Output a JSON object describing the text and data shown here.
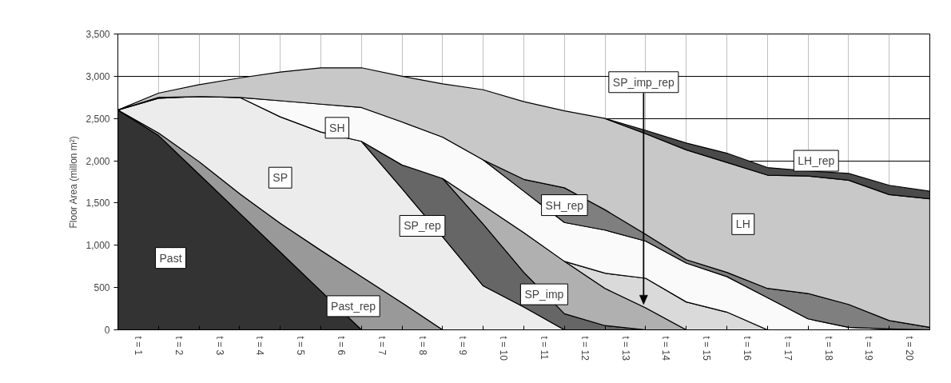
{
  "chart_data": {
    "type": "area",
    "stacked": true,
    "ylabel": "Floor Area (millon m²)",
    "x": [
      0.5,
      1.5,
      2.5,
      3.5,
      4.5,
      5.5,
      6.5,
      7.5,
      8.5,
      9.5,
      10.5,
      11.5,
      12.5,
      13.5,
      14.5,
      15.5,
      16.5,
      17.5,
      18.5,
      19.5,
      20.5
    ],
    "xlim": [
      0.5,
      20.5
    ],
    "xticks": [
      {
        "value": 1,
        "label": "t = 1"
      },
      {
        "value": 2,
        "label": "t = 2"
      },
      {
        "value": 3,
        "label": "t = 3"
      },
      {
        "value": 4,
        "label": "t = 4"
      },
      {
        "value": 5,
        "label": "t = 5"
      },
      {
        "value": 6,
        "label": "t = 6"
      },
      {
        "value": 7,
        "label": "t = 7"
      },
      {
        "value": 8,
        "label": "t = 8"
      },
      {
        "value": 9,
        "label": "t = 9"
      },
      {
        "value": 10,
        "label": "t = 10"
      },
      {
        "value": 11,
        "label": "t = 11"
      },
      {
        "value": 12,
        "label": "t = 12"
      },
      {
        "value": 13,
        "label": "t = 13"
      },
      {
        "value": 14,
        "label": "t = 14"
      },
      {
        "value": 15,
        "label": "t = 15"
      },
      {
        "value": 16,
        "label": "t = 16"
      },
      {
        "value": 17,
        "label": "t = 17"
      },
      {
        "value": 18,
        "label": "t = 18"
      },
      {
        "value": 19,
        "label": "t = 19"
      },
      {
        "value": 20,
        "label": "t = 20"
      },
      {
        "value": 1.5,
        "label": null
      },
      {
        "value": 2.5,
        "label": null
      },
      {
        "value": 3.5,
        "label": null
      },
      {
        "value": 4.5,
        "label": null
      },
      {
        "value": 5.5,
        "label": null
      },
      {
        "value": 6.5,
        "label": null
      },
      {
        "value": 7.5,
        "label": null
      },
      {
        "value": 8.5,
        "label": null
      },
      {
        "value": 9.5,
        "label": null
      },
      {
        "value": 10.5,
        "label": null
      },
      {
        "value": 11.5,
        "label": null
      },
      {
        "value": 12.5,
        "label": null
      },
      {
        "value": 13.5,
        "label": null
      },
      {
        "value": 14.5,
        "label": null
      },
      {
        "value": 15.5,
        "label": null
      },
      {
        "value": 16.5,
        "label": null
      },
      {
        "value": 17.5,
        "label": null
      },
      {
        "value": 18.5,
        "label": null
      },
      {
        "value": 19.5,
        "label": null
      }
    ],
    "ylim": [
      0,
      3500
    ],
    "yticks": [
      0,
      500,
      {
        "value": 1000,
        "label": "1,000"
      },
      {
        "value": 1500,
        "label": "1,500"
      },
      {
        "value": 2000,
        "label": "2,000"
      },
      {
        "value": 2500,
        "label": "2,500"
      },
      {
        "value": 3000,
        "label": "3,000"
      },
      {
        "value": 3500,
        "label": "3,500"
      }
    ],
    "grid": true,
    "series": [
      {
        "name": "Past",
        "color": "#333333",
        "values": [
          2600,
          2300,
          1840,
          1380,
          920,
          460,
          0,
          null,
          null,
          null,
          null,
          null,
          null,
          null,
          null,
          null,
          null,
          null,
          null,
          null,
          null
        ]
      },
      {
        "name": "Past_rep",
        "color": "#999999",
        "values": [
          0,
          30,
          150,
          230,
          340,
          480,
          630,
          320,
          0,
          null,
          null,
          null,
          null,
          null,
          null,
          null,
          null,
          null,
          null,
          null,
          null
        ]
      },
      {
        "name": "SP",
        "color": "#ececec",
        "values": [
          0,
          410,
          770,
          1140,
          1260,
          1400,
          1600,
          1350,
          1100,
          520,
          270,
          0,
          null,
          null,
          null,
          null,
          null,
          null,
          null,
          null,
          null
        ]
      },
      {
        "name": "SP_rep",
        "color": "#666666",
        "values": [
          null,
          null,
          null,
          null,
          null,
          null,
          0,
          280,
          690,
          730,
          410,
          190,
          50,
          0,
          null,
          null,
          null,
          null,
          null,
          null,
          null
        ]
      },
      {
        "name": "SP_imp",
        "color": "#b0b0b0",
        "values": [
          null,
          null,
          null,
          null,
          null,
          null,
          null,
          null,
          0,
          220,
          470,
          620,
          440,
          260,
          0,
          null,
          null,
          null,
          null,
          null,
          null
        ]
      },
      {
        "name": "SP_imp_rep",
        "color": "#dadada",
        "values": [
          null,
          null,
          null,
          null,
          null,
          null,
          null,
          null,
          null,
          null,
          null,
          0,
          180,
          350,
          330,
          210,
          0,
          null,
          null,
          null,
          null
        ]
      },
      {
        "name": "SH",
        "color": "#fafafa",
        "values": [
          0,
          10,
          0,
          0,
          190,
          330,
          400,
          510,
          490,
          540,
          490,
          460,
          510,
          440,
          460,
          420,
          380,
          130,
          30,
          10,
          0
        ]
      },
      {
        "name": "SH_rep",
        "color": "#7f7f7f",
        "values": [
          null,
          null,
          null,
          null,
          null,
          null,
          null,
          null,
          null,
          0,
          140,
          410,
          240,
          80,
          40,
          50,
          110,
          300,
          270,
          100,
          30
        ]
      },
      {
        "name": "LH",
        "color": "#c8c8c8",
        "values": [
          0,
          50,
          140,
          230,
          340,
          430,
          470,
          540,
          630,
          830,
          920,
          910,
          1080,
          1190,
          1300,
          1300,
          1340,
          1390,
          1470,
          1490,
          1520
        ]
      },
      {
        "name": "LH_rep",
        "color": "#4a4a4a",
        "values": [
          null,
          null,
          null,
          null,
          null,
          null,
          null,
          null,
          null,
          null,
          null,
          null,
          0,
          40,
          80,
          110,
          90,
          60,
          80,
          110,
          90
        ]
      }
    ]
  }
}
